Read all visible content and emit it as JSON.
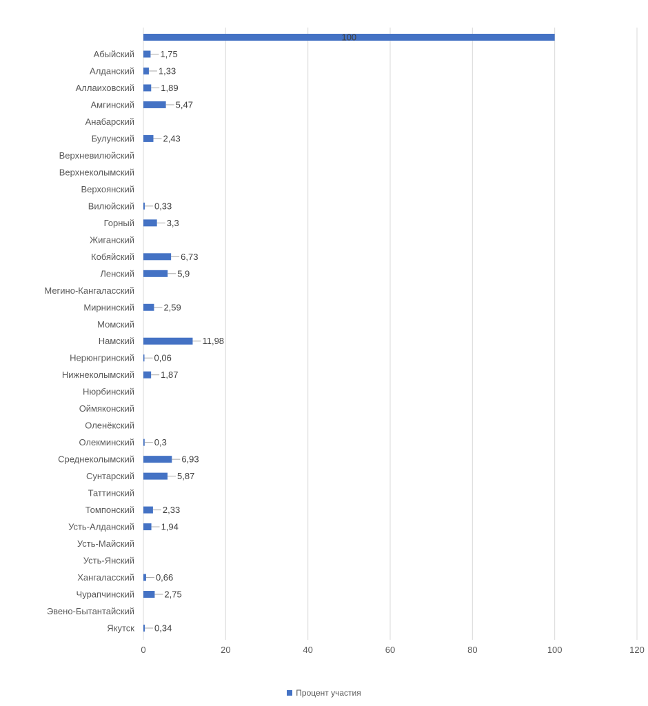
{
  "chart_data": {
    "type": "bar",
    "orientation": "horizontal",
    "title": "",
    "xlabel": "",
    "ylabel": "",
    "xlim": [
      0,
      120
    ],
    "xticks": [
      "0",
      "20",
      "40",
      "60",
      "80",
      "100",
      "120"
    ],
    "grid": true,
    "legend_position": "bottom",
    "categories": [
      "",
      "Абыйский",
      "Алданский",
      "Аллаиховский",
      "Амгинский",
      "Анабарский",
      "Булунский",
      "Верхневилюйский",
      "Верхнеколымский",
      "Верхоянский",
      "Вилюйский",
      "Горный",
      "Жиганский",
      "Кобяйский",
      "Ленский",
      "Мегино-Кангаласский",
      "Мирнинский",
      "Момский",
      "Намский",
      "Нерюнгринский",
      "Нижнеколымский",
      "Нюрбинский",
      "Оймяконский",
      "Оленёкский",
      "Олекминский",
      "Среднеколымский",
      "Сунтарский",
      "Таттинский",
      "Томпонский",
      "Усть-Алданский",
      "Усть-Майский",
      "Усть-Янский",
      "Хангаласский",
      "Чурапчинский",
      "Эвено-Бытантайский",
      "Якутск"
    ],
    "series": [
      {
        "name": "Процент участия",
        "color": "#4472c4",
        "values": [
          100,
          1.75,
          1.33,
          1.89,
          5.47,
          null,
          2.43,
          null,
          null,
          null,
          0.33,
          3.3,
          null,
          6.73,
          5.9,
          null,
          2.59,
          null,
          11.98,
          0.06,
          1.87,
          null,
          null,
          null,
          0.3,
          6.93,
          5.87,
          null,
          2.33,
          1.94,
          null,
          null,
          0.66,
          2.75,
          null,
          0.34
        ],
        "labels": [
          "100",
          "1,75",
          "1,33",
          "1,89",
          "5,47",
          null,
          "2,43",
          null,
          null,
          null,
          "0,33",
          "3,3",
          null,
          "6,73",
          "5,9",
          null,
          "2,59",
          null,
          "11,98",
          "0,06",
          "1,87",
          null,
          null,
          null,
          "0,3",
          "6,93",
          "5,87",
          null,
          "2,33",
          "1,94",
          null,
          null,
          "0,66",
          "2,75",
          null,
          "0,34"
        ]
      }
    ]
  }
}
